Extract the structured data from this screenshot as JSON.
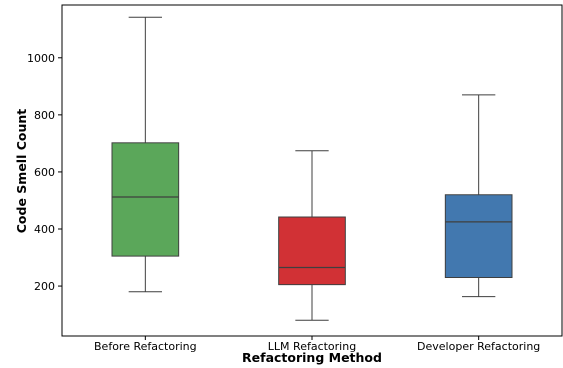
{
  "chart_data": {
    "type": "box",
    "title": "",
    "xlabel": "Refactoring Method",
    "ylabel": "Code Smell Count",
    "ylim": [
      25,
      1185
    ],
    "yticks": [
      200,
      400,
      600,
      800,
      1000
    ],
    "grid": false,
    "categories": [
      "Before Refactoring",
      "LLM Refactoring",
      "Developer Refactoring"
    ],
    "boxes": [
      {
        "label": "Before Refactoring",
        "color": "#5ba75a",
        "min": 180,
        "q1": 305,
        "median": 512,
        "q3": 702,
        "max": 1142
      },
      {
        "label": "LLM Refactoring",
        "color": "#d13135",
        "min": 80,
        "q1": 205,
        "median": 265,
        "q3": 442,
        "max": 674
      },
      {
        "label": "Developer Refactoring",
        "color": "#4278af",
        "min": 163,
        "q1": 230,
        "median": 425,
        "q3": 520,
        "max": 870
      }
    ]
  }
}
